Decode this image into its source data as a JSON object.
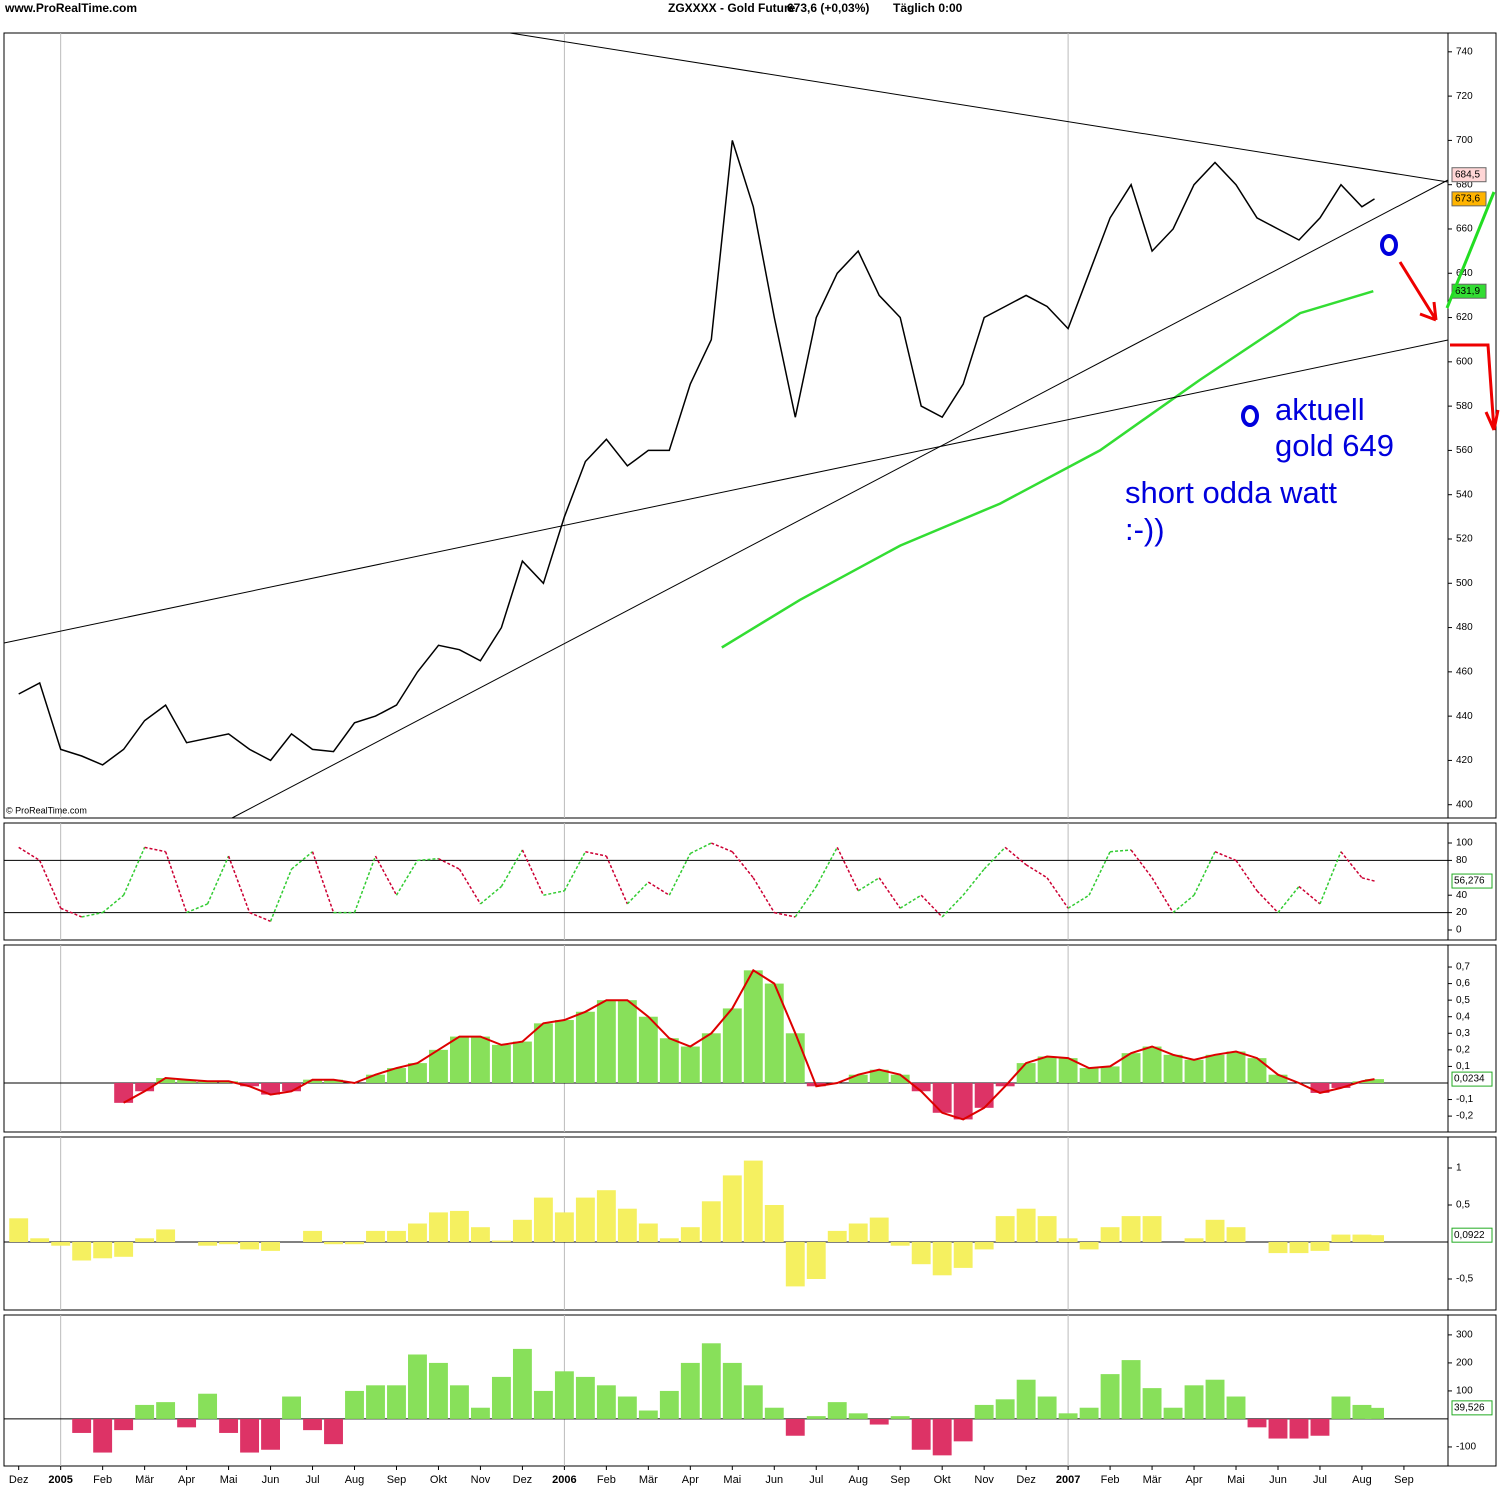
{
  "header": {
    "site": "www.ProRealTime.com",
    "title": "ZGXXXX - Gold Future",
    "quote": "673,6 (+0,03%)",
    "period": "Täglich  0:00"
  },
  "copyright": "© ProRealTime.com",
  "annotations": [
    "aktuell",
    "gold 649",
    "short odda watt",
    ":-))"
  ],
  "chart_data": [
    {
      "type": "line",
      "xlim": [
        -0.35,
        34.05
      ],
      "ylim": [
        394,
        748.5
      ],
      "yticks": [
        400,
        420,
        440,
        460,
        480,
        500,
        520,
        540,
        560,
        580,
        600,
        620,
        640,
        660,
        680,
        700,
        720,
        740
      ],
      "x": [
        0,
        0.5,
        1,
        1.5,
        2,
        2.5,
        3,
        3.5,
        4,
        4.5,
        5,
        5.5,
        6,
        6.5,
        7,
        7.5,
        8,
        8.5,
        9,
        9.5,
        10,
        10.5,
        11,
        11.5,
        12,
        12.5,
        13,
        13.5,
        14,
        14.5,
        15,
        15.5,
        16,
        16.5,
        17,
        17.5,
        18,
        18.5,
        19,
        19.5,
        20,
        20.5,
        21,
        21.5,
        22,
        22.5,
        23,
        23.5,
        24,
        24.5,
        25,
        25.5,
        26,
        26.5,
        27,
        27.5,
        28,
        28.5,
        29,
        29.5,
        30,
        30.5,
        31,
        31.5,
        32,
        32.3
      ],
      "series": [
        {
          "color": "#000000",
          "values": [
            450,
            455,
            425,
            422,
            418,
            425,
            438,
            445,
            428,
            430,
            432,
            425,
            420,
            432,
            425,
            424,
            437,
            440,
            445,
            460,
            472,
            470,
            465,
            480,
            510,
            500,
            530,
            555,
            565,
            553,
            560,
            560,
            590,
            610,
            700,
            670,
            620,
            575,
            620,
            640,
            650,
            630,
            620,
            580,
            575,
            590,
            620,
            625,
            630,
            625,
            615,
            640,
            665,
            680,
            650,
            660,
            680,
            690,
            680,
            665,
            660,
            655,
            665,
            680,
            670,
            673.6
          ]
        },
        {
          "color": "#33dd33",
          "x": [
            16.75,
            18.61,
            21.0,
            23.38,
            25.76,
            28.15,
            30.53,
            32.27
          ],
          "values": [
            471,
            492.5,
            517,
            536,
            560,
            592,
            622,
            631.9
          ]
        }
      ],
      "markers": [
        {
          "value": 684.5,
          "label": "684,5",
          "color": "#ffd6d6"
        },
        {
          "value": 673.6,
          "label": "673,6",
          "color": "#ffb400"
        },
        {
          "value": 631.9,
          "label": "631,9",
          "color": "#33dd33"
        }
      ]
    },
    {
      "type": "line",
      "xlim": [
        -0.35,
        34.05
      ],
      "ylim": [
        -11.5,
        123
      ],
      "yticks": [
        0,
        20,
        40,
        80,
        100
      ],
      "hlines": [
        20,
        80
      ],
      "up_color": "#33cc33",
      "down_color": "#cc0033",
      "x": [
        0,
        0.5,
        1,
        1.5,
        2,
        2.5,
        3,
        3.5,
        4,
        4.5,
        5,
        5.5,
        6,
        6.5,
        7,
        7.5,
        8,
        8.5,
        9,
        9.5,
        10,
        10.5,
        11,
        11.5,
        12,
        12.5,
        13,
        13.5,
        14,
        14.5,
        15,
        15.5,
        16,
        16.5,
        17,
        17.5,
        18,
        18.5,
        19,
        19.5,
        20,
        20.5,
        21,
        21.5,
        22,
        22.5,
        23,
        23.5,
        24,
        24.5,
        25,
        25.5,
        26,
        26.5,
        27,
        27.5,
        28,
        28.5,
        29,
        29.5,
        30,
        30.5,
        31,
        31.5,
        32,
        32.3
      ],
      "values": [
        95,
        80,
        25,
        15,
        20,
        40,
        95,
        90,
        20,
        30,
        85,
        20,
        10,
        70,
        90,
        20,
        20,
        85,
        40,
        80,
        82,
        70,
        30,
        50,
        92,
        40,
        45,
        90,
        85,
        30,
        55,
        40,
        88,
        100,
        90,
        60,
        20,
        15,
        50,
        95,
        45,
        60,
        25,
        40,
        15,
        40,
        70,
        95,
        75,
        60,
        25,
        40,
        90,
        92,
        60,
        20,
        40,
        90,
        80,
        45,
        20,
        50,
        30,
        90,
        60,
        56.276
      ],
      "last": {
        "value": 56.276,
        "label": "56,276",
        "color": "#22aa22"
      }
    },
    {
      "type": "bar",
      "xlim": [
        -0.35,
        34.05
      ],
      "ylim": [
        -0.296,
        0.833
      ],
      "yticks": [
        {
          "value": 0.7,
          "label": "0,7"
        },
        {
          "value": 0.6,
          "label": "0,6"
        },
        {
          "value": 0.5,
          "label": "0,5"
        },
        {
          "value": 0.4,
          "label": "0,4"
        },
        {
          "value": 0.3,
          "label": "0,3"
        },
        {
          "value": 0.2,
          "label": "0,2"
        },
        {
          "value": 0.1,
          "label": "0,1"
        },
        {
          "value": -0.1,
          "label": "-0,1"
        },
        {
          "value": -0.2,
          "label": "-0,2"
        }
      ],
      "pos_color": "#88e05a",
      "neg_color": "#dd3366",
      "line_color": "#dd0000",
      "x": [
        0,
        0.5,
        1,
        1.5,
        2,
        2.5,
        3,
        3.5,
        4,
        4.5,
        5,
        5.5,
        6,
        6.5,
        7,
        7.5,
        8,
        8.5,
        9,
        9.5,
        10,
        10.5,
        11,
        11.5,
        12,
        12.5,
        13,
        13.5,
        14,
        14.5,
        15,
        15.5,
        16,
        16.5,
        17,
        17.5,
        18,
        18.5,
        19,
        19.5,
        20,
        20.5,
        21,
        21.5,
        22,
        22.5,
        23,
        23.5,
        24,
        24.5,
        25,
        25.5,
        26,
        26.5,
        27,
        27.5,
        28,
        28.5,
        29,
        29.5,
        30,
        30.5,
        31,
        31.5,
        32,
        32.3
      ],
      "values": [
        null,
        null,
        null,
        null,
        null,
        -0.12,
        -0.05,
        0.03,
        0.02,
        0.01,
        0.01,
        -0.02,
        -0.07,
        -0.05,
        0.02,
        0.02,
        0.0,
        0.05,
        0.09,
        0.12,
        0.2,
        0.28,
        0.28,
        0.23,
        0.25,
        0.36,
        0.38,
        0.43,
        0.5,
        0.5,
        0.4,
        0.27,
        0.22,
        0.3,
        0.45,
        0.68,
        0.6,
        0.3,
        -0.02,
        0.0,
        0.05,
        0.08,
        0.05,
        -0.05,
        -0.18,
        -0.22,
        -0.15,
        -0.02,
        0.12,
        0.16,
        0.15,
        0.09,
        0.1,
        0.18,
        0.22,
        0.17,
        0.14,
        0.17,
        0.19,
        0.15,
        0.05,
        0.0,
        -0.06,
        -0.03,
        0.01,
        0.0234
      ],
      "last": {
        "value": 0.0234,
        "label": "0,0234",
        "color": "#22aa22"
      }
    },
    {
      "type": "bar",
      "xlim": [
        -0.35,
        34.05
      ],
      "ylim": [
        -0.919,
        1.419
      ],
      "yticks": [
        1,
        {
          "value": 0.5,
          "label": "0,5"
        },
        {
          "value": -0.5,
          "label": "-0,5"
        }
      ],
      "pos_color": "#f5f060",
      "neg_color": "#f5f060",
      "x": [
        0,
        0.5,
        1,
        1.5,
        2,
        2.5,
        3,
        3.5,
        4,
        4.5,
        5,
        5.5,
        6,
        6.5,
        7,
        7.5,
        8,
        8.5,
        9,
        9.5,
        10,
        10.5,
        11,
        11.5,
        12,
        12.5,
        13,
        13.5,
        14,
        14.5,
        15,
        15.5,
        16,
        16.5,
        17,
        17.5,
        18,
        18.5,
        19,
        19.5,
        20,
        20.5,
        21,
        21.5,
        22,
        22.5,
        23,
        23.5,
        24,
        24.5,
        25,
        25.5,
        26,
        26.5,
        27,
        27.5,
        28,
        28.5,
        29,
        29.5,
        30,
        30.5,
        31,
        31.5,
        32,
        32.3
      ],
      "values": [
        0.32,
        0.05,
        -0.05,
        -0.25,
        -0.22,
        -0.2,
        0.05,
        0.17,
        0,
        -0.05,
        -0.03,
        -0.1,
        -0.12,
        0,
        0.15,
        -0.03,
        -0.03,
        0.15,
        0.15,
        0.25,
        0.4,
        0.42,
        0.2,
        0.02,
        0.3,
        0.6,
        0.4,
        0.6,
        0.7,
        0.45,
        0.25,
        0.05,
        0.2,
        0.55,
        0.9,
        1.1,
        0.5,
        -0.6,
        -0.5,
        0.15,
        0.25,
        0.33,
        -0.05,
        -0.3,
        -0.45,
        -0.35,
        -0.1,
        0.35,
        0.45,
        0.35,
        0.05,
        -0.1,
        0.2,
        0.35,
        0.35,
        0,
        0.05,
        0.3,
        0.2,
        0,
        -0.15,
        -0.15,
        -0.12,
        0.1,
        0.1,
        0.0922
      ],
      "last": {
        "value": 0.0922,
        "label": "0,0922",
        "color": "#22aa22"
      }
    },
    {
      "type": "bar",
      "xlim": [
        -0.35,
        34.05
      ],
      "ylim": [
        -168,
        371
      ],
      "yticks": [
        300,
        200,
        100,
        -100
      ],
      "pos_color": "#88e05a",
      "neg_color": "#dd3366",
      "x": [
        0,
        0.5,
        1,
        1.5,
        2,
        2.5,
        3,
        3.5,
        4,
        4.5,
        5,
        5.5,
        6,
        6.5,
        7,
        7.5,
        8,
        8.5,
        9,
        9.5,
        10,
        10.5,
        11,
        11.5,
        12,
        12.5,
        13,
        13.5,
        14,
        14.5,
        15,
        15.5,
        16,
        16.5,
        17,
        17.5,
        18,
        18.5,
        19,
        19.5,
        20,
        20.5,
        21,
        21.5,
        22,
        22.5,
        23,
        23.5,
        24,
        24.5,
        25,
        25.5,
        26,
        26.5,
        27,
        27.5,
        28,
        28.5,
        29,
        29.5,
        30,
        30.5,
        31,
        31.5,
        32,
        32.3
      ],
      "values": [
        null,
        null,
        null,
        -50,
        -120,
        -40,
        50,
        60,
        -30,
        90,
        -50,
        -120,
        -110,
        80,
        -40,
        -90,
        100,
        120,
        120,
        230,
        200,
        120,
        40,
        150,
        250,
        100,
        170,
        150,
        120,
        80,
        30,
        100,
        200,
        270,
        200,
        120,
        40,
        -60,
        10,
        60,
        20,
        -20,
        10,
        -110,
        -130,
        -80,
        50,
        70,
        140,
        80,
        20,
        40,
        160,
        210,
        110,
        40,
        120,
        140,
        80,
        -30,
        -70,
        -70,
        -60,
        80,
        50,
        39.526
      ],
      "last": {
        "value": 39.526,
        "label": "39,526",
        "color": "#22aa22"
      },
      "xticks": [
        {
          "value": 0,
          "label": "Dez"
        },
        {
          "value": 1,
          "label": "2005"
        },
        {
          "value": 2,
          "label": "Feb"
        },
        {
          "value": 3,
          "label": "Mär"
        },
        {
          "value": 4,
          "label": "Apr"
        },
        {
          "value": 5,
          "label": "Mai"
        },
        {
          "value": 6,
          "label": "Jun"
        },
        {
          "value": 7,
          "label": "Jul"
        },
        {
          "value": 8,
          "label": "Aug"
        },
        {
          "value": 9,
          "label": "Sep"
        },
        {
          "value": 10,
          "label": "Okt"
        },
        {
          "value": 11,
          "label": "Nov"
        },
        {
          "value": 12,
          "label": "Dez"
        },
        {
          "value": 13,
          "label": "2006"
        },
        {
          "value": 14,
          "label": "Feb"
        },
        {
          "value": 15,
          "label": "Mär"
        },
        {
          "value": 16,
          "label": "Apr"
        },
        {
          "value": 17,
          "label": "Mai"
        },
        {
          "value": 18,
          "label": "Jun"
        },
        {
          "value": 19,
          "label": "Jul"
        },
        {
          "value": 20,
          "label": "Aug"
        },
        {
          "value": 21,
          "label": "Sep"
        },
        {
          "value": 22,
          "label": "Okt"
        },
        {
          "value": 23,
          "label": "Nov"
        },
        {
          "value": 24,
          "label": "Dez"
        },
        {
          "value": 25,
          "label": "2007"
        },
        {
          "value": 26,
          "label": "Feb"
        },
        {
          "value": 27,
          "label": "Mär"
        },
        {
          "value": 28,
          "label": "Apr"
        },
        {
          "value": 29,
          "label": "Mai"
        },
        {
          "value": 30,
          "label": "Jun"
        },
        {
          "value": 31,
          "label": "Jul"
        },
        {
          "value": 32,
          "label": "Aug"
        },
        {
          "value": 33,
          "label": "Sep"
        }
      ]
    }
  ]
}
